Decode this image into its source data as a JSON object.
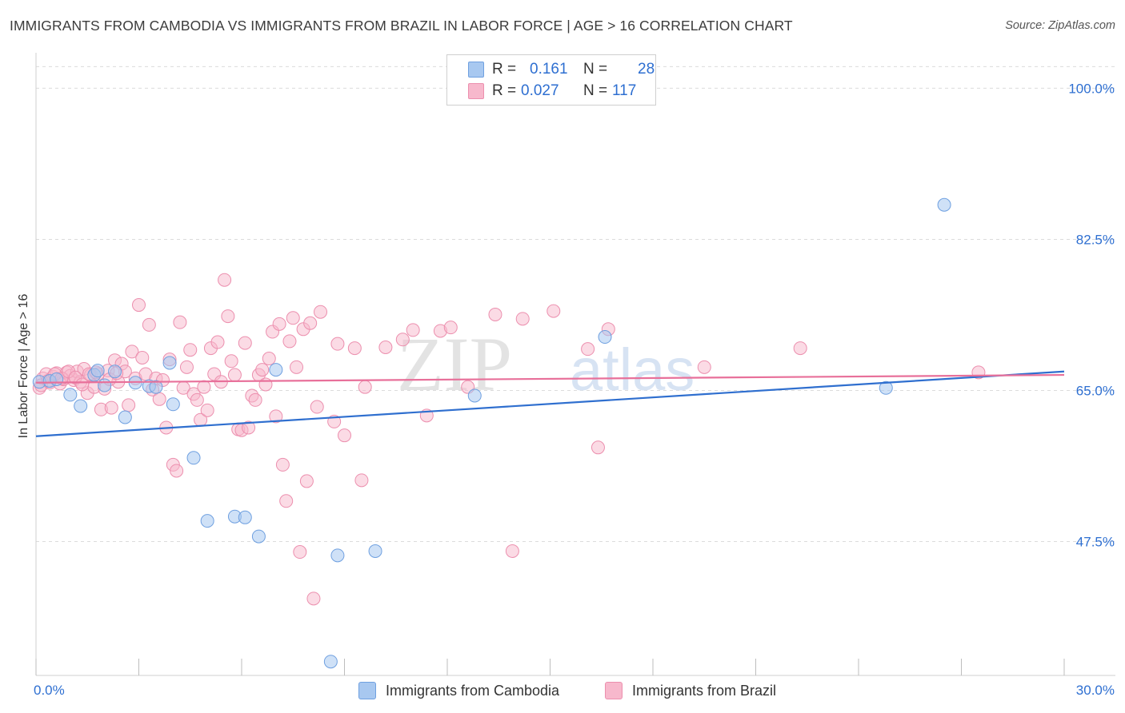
{
  "header": {
    "title": "IMMIGRANTS FROM CAMBODIA VS IMMIGRANTS FROM BRAZIL IN LABOR FORCE | AGE > 16 CORRELATION CHART",
    "source": "Source: ZipAtlas.com"
  },
  "legend": {
    "rows": [
      {
        "r_label": "R =",
        "r_value": "0.161",
        "n_label": "N =",
        "n_value": "28",
        "color": "#a8c8f0"
      },
      {
        "r_label": "R =",
        "r_value": "0.027",
        "n_label": "N =",
        "n_value": "117",
        "color": "#f7b8cc"
      }
    ]
  },
  "bottom_legend": [
    "Immigrants from Cambodia",
    "Immigrants from Brazil"
  ],
  "colors": {
    "cambodia_fill": "#a8c8f0",
    "cambodia_stroke": "#6fa0e0",
    "cambodia_line": "#2f6fcf",
    "brazil_fill": "#f7b8cc",
    "brazil_stroke": "#ec8fae",
    "brazil_line": "#e8709a",
    "tick_label": "#2e6fd1"
  },
  "watermark": {
    "zip": "ZIP",
    "atlas": "atlas"
  },
  "chart_data": {
    "type": "scatter",
    "ylabel": "In Labor Force | Age > 16",
    "xlim": [
      0,
      30
    ],
    "ylim": [
      32,
      103
    ],
    "x_tick_labels": [
      "0.0%",
      "30.0%"
    ],
    "y_ticks": [
      100.0,
      82.5,
      65.0,
      47.5
    ],
    "y_tick_labels": [
      "100.0%",
      "82.5%",
      "65.0%",
      "47.5%"
    ],
    "grid": true,
    "series": [
      {
        "name": "Immigrants from Cambodia",
        "R": 0.161,
        "N": 28,
        "trend": {
          "x": [
            0,
            30
          ],
          "y": [
            59.7,
            67.2
          ]
        },
        "points": [
          [
            0.1,
            66.0
          ],
          [
            0.4,
            66.1
          ],
          [
            1.0,
            64.5
          ],
          [
            1.3,
            63.2
          ],
          [
            1.7,
            66.8
          ],
          [
            1.8,
            67.3
          ],
          [
            2.3,
            67.2
          ],
          [
            2.6,
            61.9
          ],
          [
            2.9,
            65.9
          ],
          [
            3.3,
            65.5
          ],
          [
            3.5,
            65.4
          ],
          [
            3.9,
            68.2
          ],
          [
            4.0,
            63.4
          ],
          [
            4.6,
            57.2
          ],
          [
            5.0,
            49.9
          ],
          [
            5.8,
            50.4
          ],
          [
            6.1,
            50.3
          ],
          [
            6.5,
            48.1
          ],
          [
            7.0,
            67.4
          ],
          [
            8.6,
            33.6
          ],
          [
            8.8,
            45.9
          ],
          [
            9.9,
            46.4
          ],
          [
            12.8,
            64.4
          ],
          [
            16.6,
            71.2
          ],
          [
            24.8,
            65.3
          ],
          [
            26.5,
            86.5
          ],
          [
            0.6,
            66.3
          ],
          [
            2.0,
            65.6
          ]
        ]
      },
      {
        "name": "Immigrants from Brazil",
        "R": 0.027,
        "N": 117,
        "trend": {
          "x": [
            0,
            30
          ],
          "y": [
            65.9,
            66.8
          ]
        },
        "points": [
          [
            0.1,
            65.3
          ],
          [
            0.2,
            66.4
          ],
          [
            0.3,
            66.9
          ],
          [
            0.4,
            65.9
          ],
          [
            0.5,
            66.6
          ],
          [
            0.6,
            67.0
          ],
          [
            0.7,
            65.8
          ],
          [
            0.8,
            66.3
          ],
          [
            0.9,
            67.1
          ],
          [
            1.0,
            66.7
          ],
          [
            1.1,
            66.2
          ],
          [
            1.2,
            67.2
          ],
          [
            1.3,
            66.0
          ],
          [
            1.4,
            67.5
          ],
          [
            1.5,
            64.7
          ],
          [
            1.6,
            66.8
          ],
          [
            1.7,
            65.4
          ],
          [
            1.8,
            66.9
          ],
          [
            1.9,
            62.8
          ],
          [
            2.0,
            65.2
          ],
          [
            2.1,
            67.3
          ],
          [
            2.2,
            63.0
          ],
          [
            2.3,
            68.5
          ],
          [
            2.4,
            66.0
          ],
          [
            2.5,
            68.1
          ],
          [
            2.6,
            67.2
          ],
          [
            2.7,
            63.3
          ],
          [
            2.8,
            69.5
          ],
          [
            2.9,
            66.4
          ],
          [
            3.0,
            74.9
          ],
          [
            3.1,
            68.8
          ],
          [
            3.2,
            66.9
          ],
          [
            3.3,
            72.6
          ],
          [
            3.4,
            65.1
          ],
          [
            3.5,
            66.4
          ],
          [
            3.6,
            64.0
          ],
          [
            3.7,
            66.2
          ],
          [
            3.8,
            60.7
          ],
          [
            3.9,
            68.6
          ],
          [
            4.0,
            56.4
          ],
          [
            4.1,
            55.7
          ],
          [
            4.2,
            72.9
          ],
          [
            4.3,
            65.3
          ],
          [
            4.4,
            67.7
          ],
          [
            4.5,
            69.7
          ],
          [
            4.6,
            64.6
          ],
          [
            4.7,
            63.9
          ],
          [
            4.8,
            61.6
          ],
          [
            4.9,
            65.4
          ],
          [
            5.0,
            62.7
          ],
          [
            5.1,
            69.9
          ],
          [
            5.2,
            66.9
          ],
          [
            5.3,
            70.6
          ],
          [
            5.4,
            66.0
          ],
          [
            5.5,
            77.8
          ],
          [
            5.6,
            73.6
          ],
          [
            5.7,
            68.4
          ],
          [
            5.8,
            66.8
          ],
          [
            5.9,
            60.5
          ],
          [
            6.0,
            60.4
          ],
          [
            6.1,
            70.5
          ],
          [
            6.2,
            60.7
          ],
          [
            6.3,
            64.4
          ],
          [
            6.4,
            63.9
          ],
          [
            6.5,
            66.8
          ],
          [
            6.6,
            67.4
          ],
          [
            6.7,
            65.7
          ],
          [
            6.8,
            68.7
          ],
          [
            6.9,
            71.8
          ],
          [
            7.0,
            62.0
          ],
          [
            7.1,
            72.7
          ],
          [
            7.2,
            56.4
          ],
          [
            7.3,
            52.2
          ],
          [
            7.4,
            70.7
          ],
          [
            7.5,
            73.4
          ],
          [
            7.6,
            67.7
          ],
          [
            7.7,
            46.3
          ],
          [
            7.8,
            72.1
          ],
          [
            7.9,
            54.5
          ],
          [
            8.0,
            72.8
          ],
          [
            8.1,
            40.9
          ],
          [
            8.2,
            63.1
          ],
          [
            8.3,
            74.1
          ],
          [
            8.7,
            61.4
          ],
          [
            8.8,
            70.4
          ],
          [
            9.0,
            59.8
          ],
          [
            9.3,
            69.9
          ],
          [
            9.5,
            54.6
          ],
          [
            9.6,
            65.4
          ],
          [
            10.2,
            70.0
          ],
          [
            10.7,
            70.9
          ],
          [
            11.0,
            72.0
          ],
          [
            11.4,
            62.1
          ],
          [
            11.8,
            71.9
          ],
          [
            12.1,
            72.3
          ],
          [
            12.6,
            65.4
          ],
          [
            13.4,
            73.8
          ],
          [
            13.9,
            46.4
          ],
          [
            14.2,
            73.3
          ],
          [
            15.1,
            74.2
          ],
          [
            16.1,
            69.8
          ],
          [
            16.4,
            58.4
          ],
          [
            16.7,
            72.1
          ],
          [
            19.5,
            67.7
          ],
          [
            22.3,
            69.9
          ],
          [
            27.5,
            67.1
          ],
          [
            0.15,
            65.6
          ],
          [
            0.35,
            66.1
          ],
          [
            0.55,
            66.9
          ],
          [
            0.75,
            66.4
          ],
          [
            0.95,
            67.2
          ],
          [
            1.15,
            66.5
          ],
          [
            1.35,
            65.7
          ],
          [
            1.55,
            66.9
          ],
          [
            1.75,
            67.1
          ],
          [
            2.15,
            66.3
          ],
          [
            2.35,
            67.0
          ]
        ]
      }
    ]
  }
}
